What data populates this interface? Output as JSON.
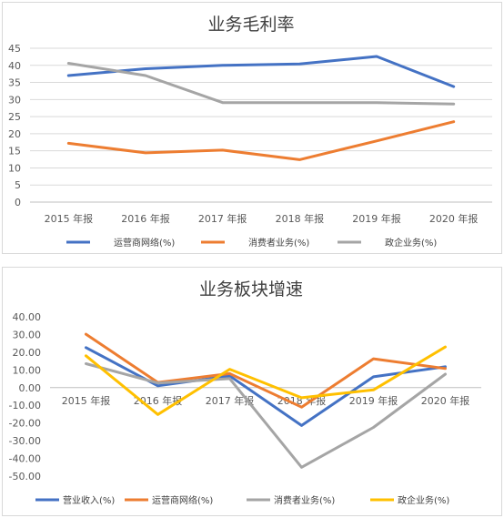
{
  "chart_data": [
    {
      "type": "line",
      "title": "业务毛利率",
      "categories": [
        "2015 年报",
        "2016 年报",
        "2017 年报",
        "2018 年报",
        "2019 年报",
        "2020 年报"
      ],
      "yticks": [
        "0",
        "5",
        "10",
        "15",
        "20",
        "25",
        "30",
        "35",
        "40",
        "45"
      ],
      "ylim": [
        0,
        45
      ],
      "grid": true,
      "legend_position": "bottom",
      "series": [
        {
          "name": "运营商网络(%)",
          "color": "#4472c4",
          "values": [
            37.0,
            39.0,
            40.0,
            40.4,
            42.6,
            33.8
          ]
        },
        {
          "name": "消费者业务(%)",
          "color": "#ed7d31",
          "values": [
            17.2,
            14.4,
            15.2,
            12.4,
            17.9,
            23.5
          ]
        },
        {
          "name": "政企业务(%)",
          "color": "#a5a5a5",
          "values": [
            40.6,
            37.0,
            29.1,
            29.1,
            29.1,
            28.7
          ]
        }
      ]
    },
    {
      "type": "line",
      "title": "业务板块增速",
      "categories": [
        "2015 年报",
        "2016 年报",
        "2017 年报",
        "2018 年报",
        "2019 年报",
        "2020 年报"
      ],
      "yticks": [
        "-50.00",
        "-40.00",
        "-30.00",
        "-20.00",
        "-10.00",
        "0.00",
        "10.00",
        "20.00",
        "30.00",
        "40.00"
      ],
      "ylim": [
        -50,
        40
      ],
      "grid": false,
      "legend_position": "bottom",
      "series": [
        {
          "name": "营业收入(%)",
          "color": "#4472c4",
          "values": [
            22.6,
            1.0,
            6.6,
            -21.4,
            6.1,
            11.8
          ]
        },
        {
          "name": "运营商网络(%)",
          "color": "#ed7d31",
          "values": [
            30.2,
            2.9,
            7.9,
            -11.0,
            16.3,
            10.8
          ]
        },
        {
          "name": "消费者业务(%)",
          "color": "#a5a5a5",
          "values": [
            13.5,
            2.6,
            5.1,
            -45.0,
            -22.5,
            7.6
          ]
        },
        {
          "name": "政企业务(%)",
          "color": "#ffc000",
          "values": [
            18.0,
            -15.2,
            10.4,
            -5.7,
            -1.3,
            23.0
          ]
        }
      ]
    }
  ]
}
